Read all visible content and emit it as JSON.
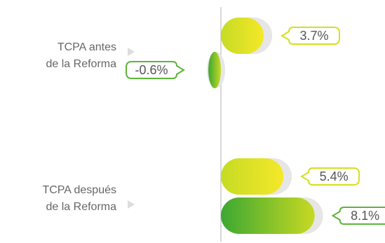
{
  "chart_data": {
    "type": "bar",
    "orientation": "horizontal",
    "categories": [
      [
        "TCPA antes",
        "de la Reforma"
      ],
      [
        "TCPA después",
        "de la Reforma"
      ]
    ],
    "bars": [
      {
        "category": 0,
        "value": 3.7,
        "label": "3.7%",
        "fill": "yellow"
      },
      {
        "category": 0,
        "value": -0.6,
        "label": "-0.6%",
        "fill": "green"
      },
      {
        "category": 1,
        "value": 5.4,
        "label": "5.4%",
        "fill": "yellow"
      },
      {
        "category": 1,
        "value": 8.1,
        "label": "8.1%",
        "fill": "green"
      }
    ],
    "gradients": {
      "yellow": [
        "#c6db24",
        "#f5e829"
      ],
      "green": [
        "#3ca832",
        "#c8d923"
      ]
    },
    "label_border_colors": {
      "yellow": "#d6df1c",
      "green": "#5db43a"
    },
    "baseline_color": "#b0b0b0",
    "grid": false,
    "legend": "none"
  }
}
